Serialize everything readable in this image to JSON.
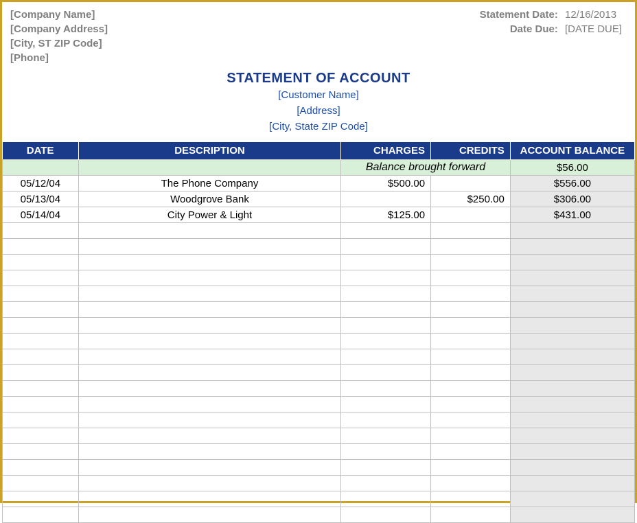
{
  "header": {
    "company_name": "[Company Name]",
    "company_address": "[Company Address]",
    "city_st_zip": "[City, ST  ZIP Code]",
    "phone": "[Phone]",
    "statement_date_label": "Statement Date:",
    "statement_date_value": "12/16/2013",
    "date_due_label": "Date Due:",
    "date_due_value": "[DATE DUE]"
  },
  "title": {
    "main": "STATEMENT OF ACCOUNT",
    "customer_name": "[Customer Name]",
    "address": "[Address]",
    "city_state_zip": "[City, State  ZIP Code]"
  },
  "table": {
    "columns": {
      "date": "DATE",
      "description": "DESCRIPTION",
      "charges": "CHARGES",
      "credits": "CREDITS",
      "balance": "ACCOUNT BALANCE"
    },
    "balance_forward_label": "Balance brought forward",
    "balance_forward_value": "$56.00",
    "rows": [
      {
        "date": "05/12/04",
        "description": "The Phone Company",
        "charges": "$500.00",
        "credits": "",
        "balance": "$556.00"
      },
      {
        "date": "05/13/04",
        "description": "Woodgrove Bank",
        "charges": "",
        "credits": "$250.00",
        "balance": "$306.00"
      },
      {
        "date": "05/14/04",
        "description": "City Power & Light",
        "charges": "$125.00",
        "credits": "",
        "balance": "$431.00"
      }
    ],
    "empty_row_count": 19,
    "column_widths": {
      "date": 110,
      "description": 380,
      "charges": 130,
      "credits": 115,
      "balance": 180
    },
    "colors": {
      "header_bg": "#1a3a8a",
      "header_fg": "#ffffff",
      "balance_forward_bg": "#d8f0d8",
      "balance_col_bg": "#e8e8e8",
      "border_color": "#c0c0c0",
      "outer_border": "#c9a227",
      "title_color": "#1a3a8a",
      "customer_color": "#1a4db3",
      "placeholder_gray": "#808080"
    }
  }
}
